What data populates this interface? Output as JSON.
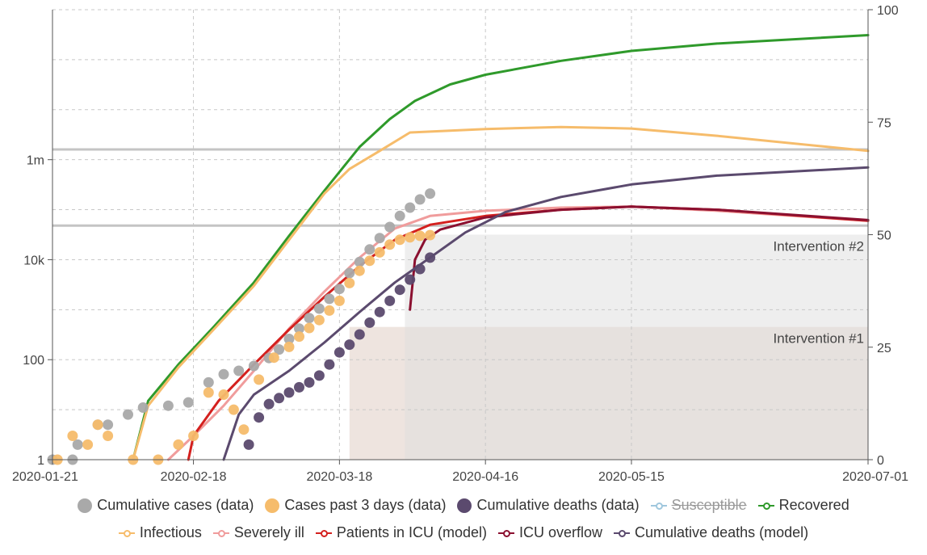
{
  "chart_data": {
    "type": "line",
    "x_axis": {
      "min": "2020-01-21",
      "max": "2020-07-01",
      "ticks": [
        "2020-01-21",
        "2020-02-18",
        "2020-03-18",
        "2020-04-16",
        "2020-05-15",
        "2020-07-01"
      ]
    },
    "y_left": {
      "scale": "log",
      "min": 1,
      "max": 1000000000,
      "ticks": [
        1,
        100,
        10000,
        1000000
      ],
      "tick_labels": [
        "1",
        "100",
        "10k",
        "1m"
      ]
    },
    "y_right": {
      "min": 0,
      "max": 100,
      "ticks": [
        0,
        25,
        50,
        75,
        100
      ],
      "tick_labels": [
        "0",
        "25",
        "50",
        "75",
        "100"
      ]
    },
    "grid": true,
    "legend_position": "bottom",
    "reference_lines_left_axis": [
      1600000,
      48000
    ],
    "interventions": [
      {
        "label": "Intervention #1",
        "start": "2020-03-20",
        "end": "2020-07-01",
        "level_right_axis": 29.5,
        "color": "#e0cdc4"
      },
      {
        "label": "Intervention #2",
        "start": "2020-03-31",
        "end": "2020-07-01",
        "level_right_axis": 50,
        "color": "#dedede"
      }
    ],
    "series": [
      {
        "name": "Cumulative cases (data)",
        "kind": "dots",
        "color": "#a9a9a9",
        "x": [
          "2020-01-21",
          "2020-01-25",
          "2020-01-26",
          "2020-01-30",
          "2020-02-01",
          "2020-02-05",
          "2020-02-08",
          "2020-02-13",
          "2020-02-17",
          "2020-02-21",
          "2020-02-24",
          "2020-02-27",
          "2020-03-01",
          "2020-03-04",
          "2020-03-06",
          "2020-03-08",
          "2020-03-10",
          "2020-03-12",
          "2020-03-14",
          "2020-03-16",
          "2020-03-18",
          "2020-03-20",
          "2020-03-22",
          "2020-03-24",
          "2020-03-26",
          "2020-03-28",
          "2020-03-30",
          "2020-04-01",
          "2020-04-03",
          "2020-04-05"
        ],
        "y": [
          1,
          1,
          2,
          5,
          5,
          8,
          11,
          12,
          14,
          35,
          51,
          60,
          75,
          108,
          160,
          260,
          420,
          680,
          1050,
          1650,
          2600,
          5400,
          9000,
          16000,
          27000,
          45000,
          75000,
          110000,
          160000,
          210000
        ]
      },
      {
        "name": "Cases past 3 days (data)",
        "kind": "dots",
        "color": "#f6bc6b",
        "x": [
          "2020-01-22",
          "2020-01-25",
          "2020-01-28",
          "2020-01-30",
          "2020-02-01",
          "2020-02-06",
          "2020-02-11",
          "2020-02-15",
          "2020-02-18",
          "2020-02-21",
          "2020-02-24",
          "2020-02-26",
          "2020-02-28",
          "2020-03-02",
          "2020-03-05",
          "2020-03-08",
          "2020-03-10",
          "2020-03-12",
          "2020-03-14",
          "2020-03-16",
          "2020-03-18",
          "2020-03-20",
          "2020-03-22",
          "2020-03-24",
          "2020-03-26",
          "2020-03-28",
          "2020-03-30",
          "2020-04-01",
          "2020-04-03",
          "2020-04-05"
        ],
        "y": [
          1,
          3,
          2,
          5,
          3,
          1,
          1,
          2,
          3,
          22,
          20,
          10,
          4,
          40,
          110,
          180,
          290,
          430,
          620,
          960,
          1500,
          3400,
          6000,
          9500,
          14000,
          20000,
          25000,
          28000,
          30000,
          31000
        ]
      },
      {
        "name": "Cumulative deaths (data)",
        "kind": "dots",
        "color": "#5b4a6e",
        "x": [
          "2020-02-29",
          "2020-03-02",
          "2020-03-04",
          "2020-03-06",
          "2020-03-08",
          "2020-03-10",
          "2020-03-12",
          "2020-03-14",
          "2020-03-16",
          "2020-03-18",
          "2020-03-20",
          "2020-03-22",
          "2020-03-24",
          "2020-03-26",
          "2020-03-28",
          "2020-03-30",
          "2020-04-01",
          "2020-04-03",
          "2020-04-05"
        ],
        "y": [
          2,
          7,
          13,
          17,
          22,
          28,
          35,
          48,
          80,
          140,
          200,
          320,
          550,
          900,
          1500,
          2500,
          4000,
          6500,
          11000
        ]
      },
      {
        "name": "Susceptible",
        "kind": "line",
        "color": "#9fc7dd",
        "disabled": true,
        "x": [],
        "y": []
      },
      {
        "name": "Recovered",
        "kind": "line",
        "color": "#2f9a2b",
        "x": [
          "2020-02-06",
          "2020-02-09",
          "2020-02-15",
          "2020-02-22",
          "2020-03-01",
          "2020-03-08",
          "2020-03-15",
          "2020-03-22",
          "2020-03-28",
          "2020-04-02",
          "2020-04-09",
          "2020-04-16",
          "2020-05-01",
          "2020-05-15",
          "2020-06-01",
          "2020-07-01"
        ],
        "y": [
          1,
          15,
          80,
          450,
          3500,
          30000,
          240000,
          1800000,
          6500000,
          15000000,
          32000000,
          50000000,
          95000000,
          150000000,
          210000000,
          310000000
        ]
      },
      {
        "name": "Infectious",
        "kind": "line",
        "color": "#f6bc6b",
        "x": [
          "2020-02-06",
          "2020-02-09",
          "2020-02-15",
          "2020-02-22",
          "2020-03-01",
          "2020-03-08",
          "2020-03-15",
          "2020-03-20",
          "2020-03-26",
          "2020-04-01",
          "2020-04-16",
          "2020-05-01",
          "2020-05-15",
          "2020-06-01",
          "2020-07-01"
        ],
        "y": [
          1,
          12,
          70,
          400,
          3000,
          25000,
          210000,
          650000,
          1500000,
          3500000,
          4100000,
          4500000,
          4200000,
          3000000,
          1500000
        ]
      },
      {
        "name": "Severely ill",
        "kind": "line",
        "color": "#f09c9c",
        "x": [
          "2020-02-13",
          "2020-02-18",
          "2020-02-24",
          "2020-03-01",
          "2020-03-08",
          "2020-03-15",
          "2020-03-22",
          "2020-03-29",
          "2020-04-05",
          "2020-04-16",
          "2020-05-01",
          "2020-05-15",
          "2020-06-01",
          "2020-07-01"
        ],
        "y": [
          1,
          3,
          12,
          60,
          420,
          2300,
          11000,
          42000,
          75000,
          95000,
          110000,
          115000,
          95000,
          60000
        ]
      },
      {
        "name": "Patients in ICU (model)",
        "kind": "line",
        "color": "#d4201e",
        "x": [
          "2020-02-17",
          "2020-02-18",
          "2020-02-23",
          "2020-03-01",
          "2020-03-08",
          "2020-03-15",
          "2020-03-22",
          "2020-03-29",
          "2020-04-05",
          "2020-04-16",
          "2020-05-01",
          "2020-05-15",
          "2020-06-01",
          "2020-07-01"
        ],
        "y": [
          1,
          3,
          15,
          80,
          400,
          1800,
          7500,
          25000,
          50000,
          75000,
          100000,
          115000,
          100000,
          60000
        ]
      },
      {
        "name": "ICU overflow",
        "kind": "line",
        "color": "#8b1030",
        "x": [
          "2020-04-01",
          "2020-04-02",
          "2020-04-04",
          "2020-04-07",
          "2020-04-16",
          "2020-05-01",
          "2020-05-15",
          "2020-06-01",
          "2020-07-01"
        ],
        "y": [
          1000,
          10000,
          25000,
          40000,
          70000,
          100000,
          115000,
          100000,
          62000
        ]
      },
      {
        "name": "Cumulative deaths (model)",
        "kind": "line",
        "color": "#5b4a6e",
        "x": [
          "2020-02-24",
          "2020-02-27",
          "2020-03-01",
          "2020-03-08",
          "2020-03-15",
          "2020-03-22",
          "2020-03-29",
          "2020-04-05",
          "2020-04-12",
          "2020-04-20",
          "2020-05-01",
          "2020-05-15",
          "2020-06-01",
          "2020-07-01"
        ],
        "y": [
          1,
          8,
          20,
          60,
          220,
          900,
          3500,
          11000,
          35000,
          90000,
          180000,
          320000,
          480000,
          700000
        ]
      }
    ],
    "legend": [
      {
        "name": "Cumulative cases (data)",
        "marker": "dot",
        "color": "#a9a9a9"
      },
      {
        "name": "Cases past 3 days (data)",
        "marker": "dot",
        "color": "#f6bc6b"
      },
      {
        "name": "Cumulative deaths (data)",
        "marker": "dot",
        "color": "#5b4a6e"
      },
      {
        "name": "Susceptible",
        "marker": "line",
        "color": "#9fc7dd",
        "disabled": true
      },
      {
        "name": "Recovered",
        "marker": "line",
        "color": "#2f9a2b"
      },
      {
        "name": "Infectious",
        "marker": "line",
        "color": "#f6bc6b"
      },
      {
        "name": "Severely ill",
        "marker": "line",
        "color": "#f09c9c"
      },
      {
        "name": "Patients in ICU (model)",
        "marker": "line",
        "color": "#d4201e"
      },
      {
        "name": "ICU overflow",
        "marker": "line",
        "color": "#8b1030"
      },
      {
        "name": "Cumulative deaths (model)",
        "marker": "line",
        "color": "#5b4a6e"
      }
    ]
  }
}
